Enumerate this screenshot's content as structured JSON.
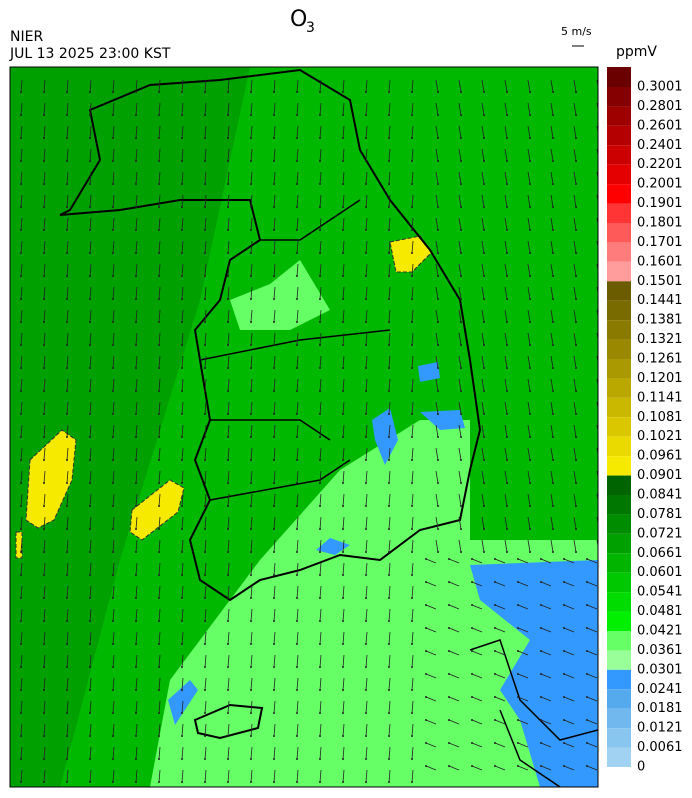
{
  "header": {
    "title": "O",
    "title_subscript": "3",
    "source": "NIER",
    "timestamp": "JUL 13 2025 23:00 KST",
    "vector_scale": "5 m/s"
  },
  "colorbar": {
    "unit": "ppmV",
    "entries": [
      {
        "value": 0.3001,
        "color": "#6b0000"
      },
      {
        "value": 0.2801,
        "color": "#850000"
      },
      {
        "value": 0.2601,
        "color": "#9e0000"
      },
      {
        "value": 0.2401,
        "color": "#b50000"
      },
      {
        "value": 0.2201,
        "color": "#cc0000"
      },
      {
        "value": 0.2001,
        "color": "#e50000"
      },
      {
        "value": 0.1901,
        "color": "#ff0000"
      },
      {
        "value": 0.1801,
        "color": "#ff3535"
      },
      {
        "value": 0.1701,
        "color": "#ff5a5a"
      },
      {
        "value": 0.1601,
        "color": "#ff7c7c"
      },
      {
        "value": 0.1501,
        "color": "#ff9c9c"
      },
      {
        "value": 0.1441,
        "color": "#6b5c00"
      },
      {
        "value": 0.1381,
        "color": "#7a6b00"
      },
      {
        "value": 0.1321,
        "color": "#8a7a00"
      },
      {
        "value": 0.1261,
        "color": "#9a8900"
      },
      {
        "value": 0.1201,
        "color": "#aa9900"
      },
      {
        "value": 0.1141,
        "color": "#baa800"
      },
      {
        "value": 0.1081,
        "color": "#cab800"
      },
      {
        "value": 0.1021,
        "color": "#dac700"
      },
      {
        "value": 0.0961,
        "color": "#eada00"
      },
      {
        "value": 0.0901,
        "color": "#f5ea00"
      },
      {
        "value": 0.0841,
        "color": "#006400"
      },
      {
        "value": 0.0781,
        "color": "#007800"
      },
      {
        "value": 0.0721,
        "color": "#008c00"
      },
      {
        "value": 0.0661,
        "color": "#00a000"
      },
      {
        "value": 0.0601,
        "color": "#00b400"
      },
      {
        "value": 0.0541,
        "color": "#00c800"
      },
      {
        "value": 0.0481,
        "color": "#00dc00"
      },
      {
        "value": 0.0421,
        "color": "#00f000"
      },
      {
        "value": 0.0361,
        "color": "#66ff66"
      },
      {
        "value": 0.0301,
        "color": "#99ff99"
      },
      {
        "value": 0.0241,
        "color": "#3399ff"
      },
      {
        "value": 0.0181,
        "color": "#55aaee"
      },
      {
        "value": 0.0121,
        "color": "#70b8ee"
      },
      {
        "value": 0.0061,
        "color": "#88c6ef"
      },
      {
        "value": 0,
        "color": "#a2d2f2"
      }
    ]
  }
}
